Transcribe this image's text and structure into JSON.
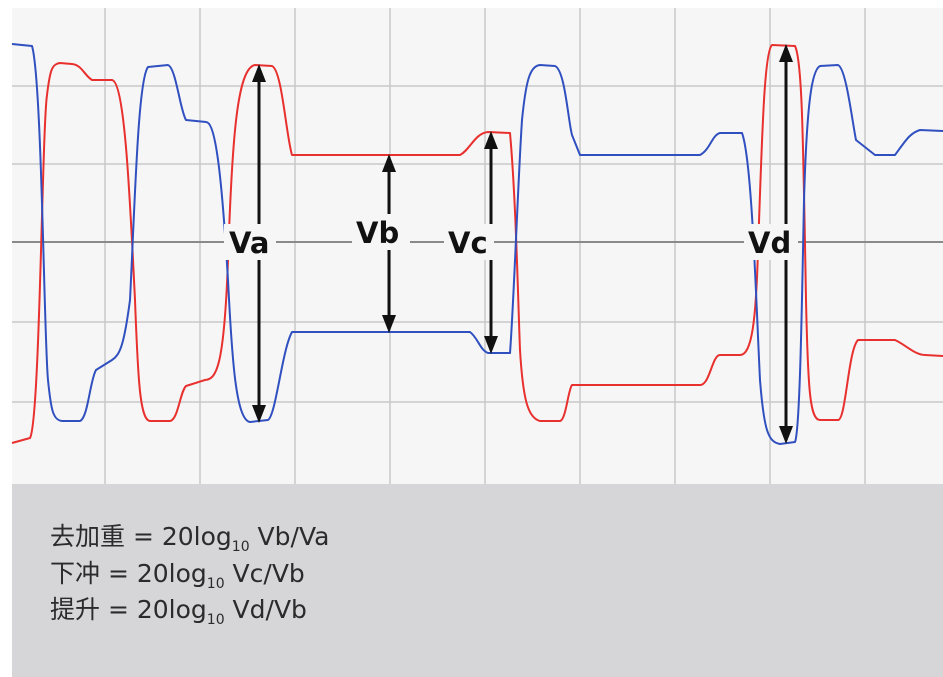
{
  "colors": {
    "background": "#f6f6f6",
    "grid": "#c8c8c8",
    "axis": "#8a8a8a",
    "trace_red": "#e8302e",
    "trace_blue": "#3050c0",
    "arrow": "#111111",
    "panel": "#d6d6d8"
  },
  "labels": {
    "va": "Va",
    "vb": "Vb",
    "vc": "Vc",
    "vd": "Vd"
  },
  "formulas": [
    {
      "name": "去加重",
      "eq": " = 20log",
      "sub": "10",
      "ratio": " Vb/Va"
    },
    {
      "name": "下冲",
      "eq": " = 20log",
      "sub": "10",
      "ratio": " Vc/Vb"
    },
    {
      "name": "提升",
      "eq": " = 20log",
      "sub": "10",
      "ratio": " Vd/Vb"
    }
  ]
}
